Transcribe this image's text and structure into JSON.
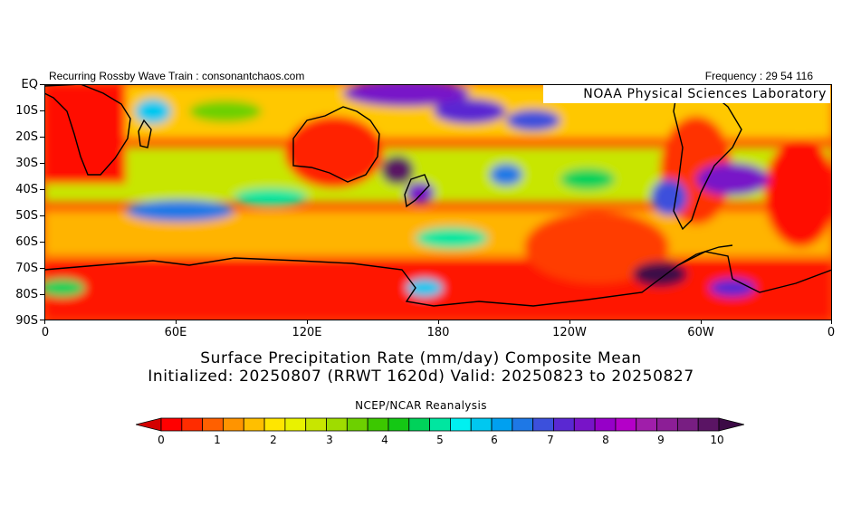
{
  "header": {
    "left_text": "Recurring Rossby Wave Train : consonantchaos.com",
    "right_text": "Frequency : 29 54 116"
  },
  "map": {
    "credit": "NOAA Physical Sciences Laboratory",
    "lat_labels": [
      "EQ",
      "10S",
      "20S",
      "30S",
      "40S",
      "50S",
      "60S",
      "70S",
      "80S",
      "90S"
    ],
    "lon_labels": [
      "0",
      "60E",
      "120E",
      "180",
      "120W",
      "60W",
      "0"
    ],
    "lat_range": [
      -90,
      0
    ],
    "lon_range": [
      0,
      360
    ]
  },
  "title": {
    "line1": "Surface Precipitation Rate (mm/day) Composite Mean",
    "line2": "Initialized: 20250807 (RRWT 1620d) Valid: 20250823 to 20250827"
  },
  "source": "NCEP/NCAR Reanalysis",
  "colorbar": {
    "labels": [
      "0",
      "1",
      "2",
      "3",
      "4",
      "5",
      "6",
      "7",
      "8",
      "9",
      "10"
    ],
    "colors": [
      "#d40000",
      "#ff0000",
      "#ff2c00",
      "#ff6000",
      "#ff9400",
      "#ffbf00",
      "#ffe600",
      "#e9f200",
      "#c8e600",
      "#9fdc00",
      "#6dd000",
      "#3cc800",
      "#14c814",
      "#00d25a",
      "#00e6a0",
      "#00f0f0",
      "#00c8f0",
      "#00a0f0",
      "#1e78e6",
      "#3c50dc",
      "#5a28d2",
      "#7814c8",
      "#9600c8",
      "#b400c8",
      "#a01eaa",
      "#8c1e96",
      "#781e82",
      "#5a1464",
      "#3c0a46"
    ]
  }
}
